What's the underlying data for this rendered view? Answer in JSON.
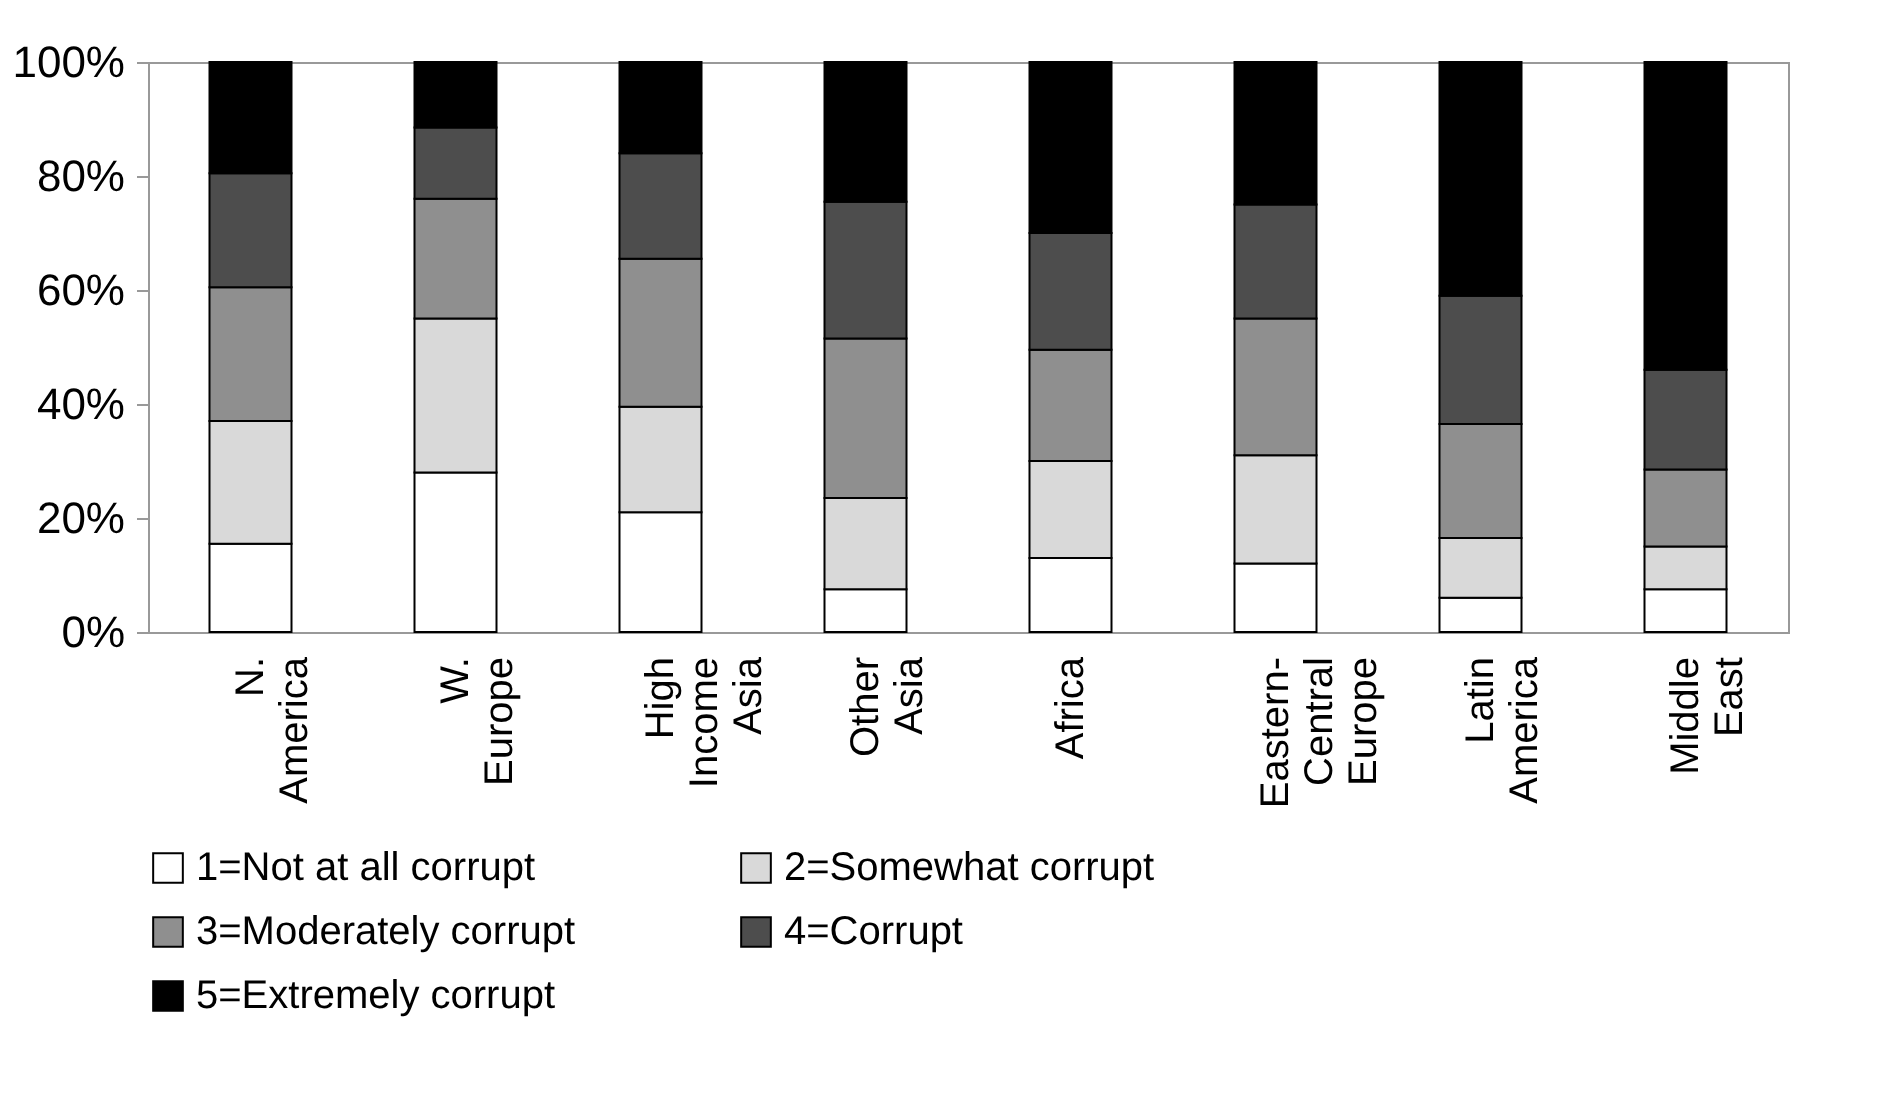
{
  "chart_data": {
    "type": "bar",
    "stacked": true,
    "categories": [
      "N. America",
      "W. Europe",
      "High Income Asia",
      "Other Asia",
      "Africa",
      "Eastern-Central Europe",
      "Latin America",
      "Middle East"
    ],
    "series": [
      {
        "name": "1=Not at all corrupt",
        "color": "#ffffff",
        "values": [
          15.5,
          28,
          21,
          7.5,
          13,
          12,
          6,
          7.5
        ]
      },
      {
        "name": "2=Somewhat corrupt",
        "color": "#d9d9d9",
        "values": [
          21.5,
          27,
          18.5,
          16,
          17,
          19,
          10.5,
          7.5
        ]
      },
      {
        "name": "3=Moderately corrupt",
        "color": "#8f8f8f",
        "values": [
          23.5,
          21,
          26,
          28,
          19.5,
          24,
          20,
          13.5
        ]
      },
      {
        "name": "4=Corrupt",
        "color": "#4d4d4d",
        "values": [
          20,
          12.5,
          18.5,
          24,
          20.5,
          20,
          22.5,
          17.5
        ]
      },
      {
        "name": "5=Extremely corrupt",
        "color": "#000000",
        "values": [
          19.5,
          11.5,
          16,
          24.5,
          30,
          25,
          41,
          54
        ]
      }
    ],
    "ylim": [
      0,
      100
    ],
    "yticks": [
      {
        "value": 0,
        "label": "0%"
      },
      {
        "value": 20,
        "label": "20%"
      },
      {
        "value": 40,
        "label": "40%"
      },
      {
        "value": 60,
        "label": "60%"
      },
      {
        "value": 80,
        "label": "80%"
      },
      {
        "value": 100,
        "label": "100%"
      }
    ],
    "grid": false,
    "legend": "bottom"
  }
}
